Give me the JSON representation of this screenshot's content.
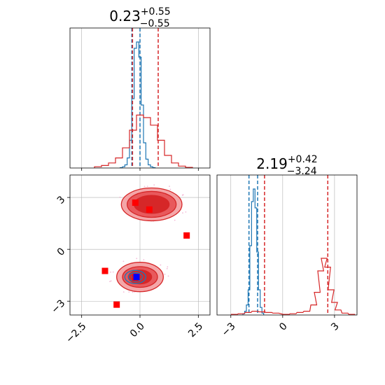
{
  "chart_data": [
    {
      "panel": "top-left",
      "type": "line",
      "chart_kind": "step histogram",
      "title_main": "0.23",
      "title_sup": "+0.55",
      "title_sub": "−0.55",
      "xlim": [
        -3.0,
        3.0
      ],
      "grid": true,
      "x_tick_labels_shown": false,
      "y_tick_labels_shown": false,
      "series": [
        {
          "color": "#1f77b4",
          "bins_x": [
            -0.8,
            -0.7,
            -0.6,
            -0.5,
            -0.4,
            -0.3,
            -0.2,
            -0.1,
            0.0,
            0.1,
            0.2,
            0.3,
            0.4,
            0.5,
            0.6
          ],
          "counts": [
            0.3,
            1.0,
            2.5,
            8,
            22,
            55,
            95,
            100,
            88,
            50,
            20,
            7,
            2.5,
            1.0,
            0.3
          ],
          "quantile_lines": [
            -0.35,
            0.0
          ]
        },
        {
          "color": "#d62728",
          "bins_x": [
            -1.8,
            -1.5,
            -1.2,
            -0.9,
            -0.6,
            -0.3,
            0.0,
            0.3,
            0.6,
            0.9,
            1.2,
            1.5,
            1.8,
            2.1
          ],
          "counts": [
            1.0,
            2.0,
            4.0,
            8,
            16,
            30,
            42,
            40,
            34,
            22,
            10,
            4.0,
            1.5,
            0.5
          ],
          "quantile_lines": [
            -0.32,
            0.78
          ]
        }
      ]
    },
    {
      "panel": "bottom-left",
      "type": "scatter",
      "chart_kind": "2D density contours",
      "xlim": [
        -3.0,
        3.0
      ],
      "ylim": [
        -3.8,
        4.3
      ],
      "x_ticks": [
        "−2.5",
        "0.0",
        "2.5"
      ],
      "y_ticks": [
        "−3",
        "0",
        "3"
      ],
      "grid": true,
      "red_contours": [
        {
          "cx": 0.5,
          "cy": 2.6,
          "rx": 1.3,
          "ry": 0.95
        },
        {
          "cx": 0.5,
          "cy": 2.6,
          "rx": 1.05,
          "ry": 0.75
        },
        {
          "cx": 0.5,
          "cy": 2.6,
          "rx": 0.75,
          "ry": 0.52
        },
        {
          "cx": 0.0,
          "cy": -1.6,
          "rx": 1.0,
          "ry": 0.85
        },
        {
          "cx": 0.0,
          "cy": -1.6,
          "rx": 0.75,
          "ry": 0.6
        },
        {
          "cx": 0.0,
          "cy": -1.6,
          "rx": 0.5,
          "ry": 0.4
        }
      ],
      "blue_contours": [
        {
          "cx": -0.2,
          "cy": -1.6,
          "rx": 0.45,
          "ry": 0.38
        },
        {
          "cx": -0.2,
          "cy": -1.6,
          "rx": 0.3,
          "ry": 0.25
        },
        {
          "cx": -0.2,
          "cy": -1.6,
          "rx": 0.15,
          "ry": 0.12
        }
      ],
      "red_markers": [
        {
          "x": -0.2,
          "y": 2.7
        },
        {
          "x": 0.4,
          "y": 2.3
        },
        {
          "x": 2.0,
          "y": 0.8
        },
        {
          "x": -1.5,
          "y": -1.25
        },
        {
          "x": -1.0,
          "y": -3.2
        },
        {
          "x": -0.2,
          "y": -1.65
        }
      ],
      "blue_marker": {
        "x": -0.15,
        "y": -1.6
      }
    },
    {
      "panel": "bottom-right",
      "type": "line",
      "chart_kind": "step histogram",
      "title_main": "2.19",
      "title_sup": "+0.42",
      "title_sub": "−3.24",
      "xlim": [
        -3.8,
        4.3
      ],
      "x_ticks": [
        "−3",
        "0",
        "3"
      ],
      "grid": true,
      "y_tick_labels_shown": false,
      "series": [
        {
          "color": "#1f77b4",
          "bins_x": [
            -2.25,
            -2.15,
            -2.05,
            -1.95,
            -1.85,
            -1.75,
            -1.65,
            -1.55,
            -1.45,
            -1.35,
            -1.25,
            -1.15
          ],
          "counts": [
            1.0,
            3.0,
            8,
            20,
            55,
            90,
            100,
            85,
            50,
            20,
            6,
            1.5
          ],
          "quantile_lines": [
            -1.95,
            -1.45
          ]
        },
        {
          "color": "#d62728",
          "bins_x": [
            -2.8,
            -2.4,
            -2.0,
            -1.6,
            -1.2,
            -0.8,
            -0.4,
            0.2,
            0.6,
            1.0,
            1.4,
            1.8,
            2.0,
            2.2,
            2.4,
            2.6,
            2.8,
            3.0,
            3.2,
            3.6,
            4.0
          ],
          "counts": [
            0.5,
            1.0,
            2.0,
            3.0,
            2.5,
            2.0,
            1.5,
            0.5,
            1.0,
            2.0,
            3.0,
            8,
            18,
            35,
            45,
            38,
            20,
            10,
            4.0,
            1.5,
            0.5
          ],
          "quantile_lines": [
            -1.05,
            2.61
          ]
        }
      ]
    }
  ],
  "colors": {
    "blue": "#1f77b4",
    "red": "#d62728",
    "red_fill_outer": "#f4a6a8",
    "red_fill_mid": "#e8595c",
    "red_fill_inner": "#d62728",
    "blue_marker": "#0000ff",
    "red_marker": "#ff0000",
    "grid": "#b0b0b0",
    "scatter_dots": "#f0a0c8"
  }
}
